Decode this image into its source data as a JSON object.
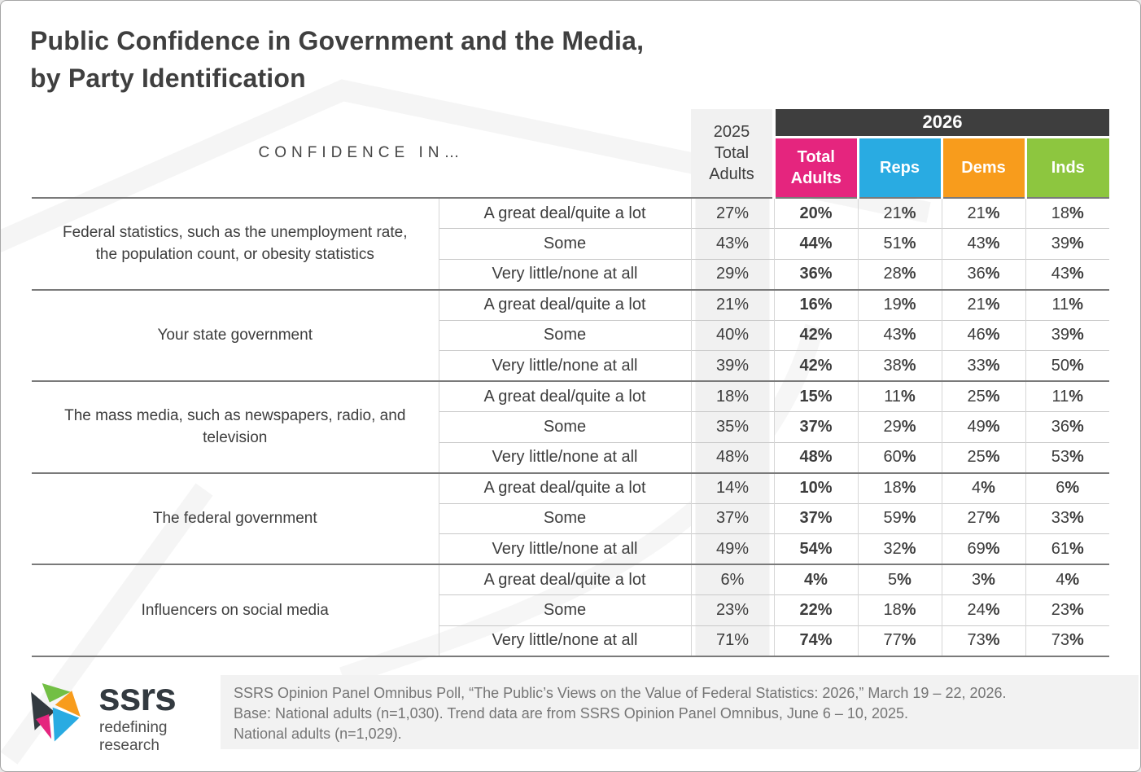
{
  "header": {
    "title_lines": [
      "Public Confidence in Government and the Media,",
      "by Party Identification"
    ]
  },
  "chart_data": {
    "type": "table",
    "title": "Public Confidence in Government and the Media, by Party Identification",
    "col_header_left": "CONFIDENCE IN…",
    "col_2025": "2025 Total Adults",
    "year_group": "2026",
    "columns_2026": [
      "Total Adults",
      "Reps",
      "Dems",
      "Inds"
    ],
    "value_columns": [
      "2025 Total Adults",
      "2026 Total Adults",
      "2026 Reps",
      "2026 Dems",
      "2026 Inds"
    ],
    "value_unit": "%",
    "column_colors": {
      "total_adults_2026": "#e5257e",
      "reps": "#29abe2",
      "dems": "#f89c1c",
      "inds": "#8dc63f",
      "year_bar": "#3e3e3e",
      "col_2025_bg": "#f1f1f1"
    },
    "response_scale": [
      "A great deal/quite a lot",
      "Some",
      "Very little/none at all"
    ],
    "groups": [
      {
        "category": "Federal statistics, such as the unemployment rate, the population count, or obesity statistics",
        "rows": [
          {
            "response": "A great deal/quite a lot",
            "values": [
              27,
              20,
              21,
              21,
              18
            ]
          },
          {
            "response": "Some",
            "values": [
              43,
              44,
              51,
              43,
              39
            ]
          },
          {
            "response": "Very little/none at all",
            "values": [
              29,
              36,
              28,
              36,
              43
            ]
          }
        ]
      },
      {
        "category": "Your state government",
        "rows": [
          {
            "response": "A great deal/quite a lot",
            "values": [
              21,
              16,
              19,
              21,
              11
            ]
          },
          {
            "response": "Some",
            "values": [
              40,
              42,
              43,
              46,
              39
            ]
          },
          {
            "response": "Very little/none at all",
            "values": [
              39,
              42,
              38,
              33,
              50
            ]
          }
        ]
      },
      {
        "category": "The mass media, such as newspapers, radio, and television",
        "rows": [
          {
            "response": "A great deal/quite a lot",
            "values": [
              18,
              15,
              11,
              25,
              11
            ]
          },
          {
            "response": "Some",
            "values": [
              35,
              37,
              29,
              49,
              36
            ]
          },
          {
            "response": "Very little/none at all",
            "values": [
              48,
              48,
              60,
              25,
              53
            ]
          }
        ]
      },
      {
        "category": "The federal government",
        "rows": [
          {
            "response": "A great deal/quite a lot",
            "values": [
              14,
              10,
              18,
              4,
              6
            ]
          },
          {
            "response": "Some",
            "values": [
              37,
              37,
              59,
              27,
              33
            ]
          },
          {
            "response": "Very little/none at all",
            "values": [
              49,
              54,
              32,
              69,
              61
            ]
          }
        ]
      },
      {
        "category": "Influencers on social media",
        "rows": [
          {
            "response": "A great deal/quite a lot",
            "values": [
              6,
              4,
              5,
              3,
              4
            ]
          },
          {
            "response": "Some",
            "values": [
              23,
              22,
              18,
              24,
              23
            ]
          },
          {
            "response": "Very little/none at all",
            "values": [
              71,
              74,
              77,
              73,
              73
            ]
          }
        ]
      }
    ]
  },
  "footer": {
    "logo": {
      "text": "ssrs",
      "tagline": "redefining research",
      "mark_icon": "ssrs-pinwheel-icon"
    },
    "lines": [
      "SSRS Opinion Panel Omnibus Poll, “The Public’s Views on the Value of Federal Statistics: 2026,” March 19 – 22, 2026.",
      "Base: National adults (n=1,030). Trend data are from SSRS Opinion Panel Omnibus, June 6 – 10, 2025.",
      "National adults (n=1,029)."
    ]
  }
}
